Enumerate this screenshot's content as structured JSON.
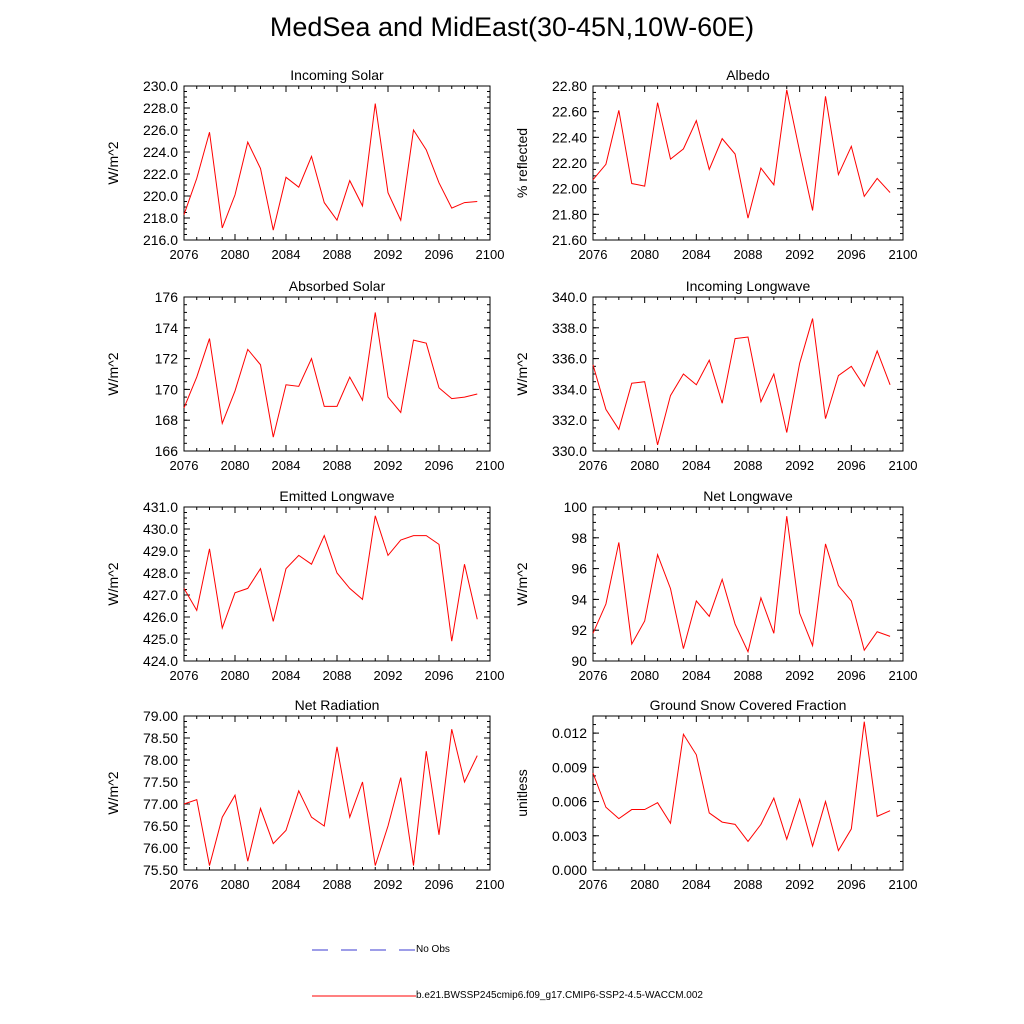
{
  "title": "MedSea and MidEast(30-45N,10W-60E)",
  "colors": {
    "series": "#ff0000",
    "obs": "#3b3bd0",
    "axis": "#000000"
  },
  "legend": {
    "obs_label": "No Obs",
    "model_label": "b.e21.BWSSP245cmip6.f09_g17.CMIP6-SSP2-4.5-WACCM.002"
  },
  "chart_data": [
    {
      "type": "line",
      "title": "Incoming Solar",
      "ylabel": "W/m^2",
      "xlim": [
        2076,
        2100
      ],
      "xticks": [
        "2076",
        "2080",
        "2084",
        "2088",
        "2092",
        "2096",
        "2100"
      ],
      "ylim": [
        216,
        230
      ],
      "yticks": [
        "216.0",
        "218.0",
        "220.0",
        "222.0",
        "224.0",
        "226.0",
        "228.0",
        "230.0"
      ],
      "x": [
        2076,
        2077,
        2078,
        2079,
        2080,
        2081,
        2082,
        2083,
        2084,
        2085,
        2086,
        2087,
        2088,
        2089,
        2090,
        2091,
        2092,
        2093,
        2094,
        2095,
        2096,
        2097,
        2098,
        2099
      ],
      "values": [
        218.3,
        221.6,
        225.8,
        217.1,
        220.1,
        224.9,
        222.5,
        216.9,
        221.7,
        220.8,
        223.6,
        219.4,
        217.8,
        221.4,
        219.1,
        228.4,
        220.3,
        217.8,
        226.0,
        224.2,
        221.2,
        218.9,
        219.4,
        219.5
      ]
    },
    {
      "type": "line",
      "title": "Albedo",
      "ylabel": "% reflected",
      "xlim": [
        2076,
        2100
      ],
      "xticks": [
        "2076",
        "2080",
        "2084",
        "2088",
        "2092",
        "2096",
        "2100"
      ],
      "ylim": [
        21.6,
        22.8
      ],
      "yticks": [
        "21.60",
        "21.80",
        "22.00",
        "22.20",
        "22.40",
        "22.60",
        "22.80"
      ],
      "x": [
        2076,
        2077,
        2078,
        2079,
        2080,
        2081,
        2082,
        2083,
        2084,
        2085,
        2086,
        2087,
        2088,
        2089,
        2090,
        2091,
        2092,
        2093,
        2094,
        2095,
        2096,
        2097,
        2098,
        2099
      ],
      "values": [
        22.07,
        22.19,
        22.61,
        22.04,
        22.02,
        22.67,
        22.23,
        22.31,
        22.53,
        22.15,
        22.39,
        22.27,
        21.77,
        22.16,
        22.03,
        22.77,
        22.29,
        21.83,
        22.72,
        22.11,
        22.33,
        21.94,
        22.08,
        21.97
      ]
    },
    {
      "type": "line",
      "title": "Absorbed Solar",
      "ylabel": "W/m^2",
      "xlim": [
        2076,
        2100
      ],
      "xticks": [
        "2076",
        "2080",
        "2084",
        "2088",
        "2092",
        "2096",
        "2100"
      ],
      "ylim": [
        166,
        176
      ],
      "yticks": [
        "166",
        "168",
        "170",
        "172",
        "174",
        "176"
      ],
      "x": [
        2076,
        2077,
        2078,
        2079,
        2080,
        2081,
        2082,
        2083,
        2084,
        2085,
        2086,
        2087,
        2088,
        2089,
        2090,
        2091,
        2092,
        2093,
        2094,
        2095,
        2096,
        2097,
        2098,
        2099
      ],
      "values": [
        168.8,
        170.8,
        173.3,
        167.8,
        169.9,
        172.6,
        171.6,
        166.9,
        170.3,
        170.2,
        172.0,
        168.9,
        168.9,
        170.8,
        169.3,
        175.0,
        169.5,
        168.5,
        173.2,
        173.0,
        170.1,
        169.4,
        169.5,
        169.7
      ]
    },
    {
      "type": "line",
      "title": "Incoming Longwave",
      "ylabel": "W/m^2",
      "xlim": [
        2076,
        2100
      ],
      "xticks": [
        "2076",
        "2080",
        "2084",
        "2088",
        "2092",
        "2096",
        "2100"
      ],
      "ylim": [
        330,
        340
      ],
      "yticks": [
        "330.0",
        "332.0",
        "334.0",
        "336.0",
        "338.0",
        "340.0"
      ],
      "x": [
        2076,
        2077,
        2078,
        2079,
        2080,
        2081,
        2082,
        2083,
        2084,
        2085,
        2086,
        2087,
        2088,
        2089,
        2090,
        2091,
        2092,
        2093,
        2094,
        2095,
        2096,
        2097,
        2098,
        2099
      ],
      "values": [
        335.6,
        332.7,
        331.4,
        334.4,
        334.5,
        330.4,
        333.6,
        335.0,
        334.3,
        335.9,
        333.1,
        337.3,
        337.4,
        333.2,
        335.0,
        331.2,
        335.7,
        338.6,
        332.1,
        334.9,
        335.5,
        334.2,
        336.5,
        334.3
      ]
    },
    {
      "type": "line",
      "title": "Emitted Longwave",
      "ylabel": "W/m^2",
      "xlim": [
        2076,
        2100
      ],
      "xticks": [
        "2076",
        "2080",
        "2084",
        "2088",
        "2092",
        "2096",
        "2100"
      ],
      "ylim": [
        424,
        431
      ],
      "yticks": [
        "424.0",
        "425.0",
        "426.0",
        "427.0",
        "428.0",
        "429.0",
        "430.0",
        "431.0"
      ],
      "x": [
        2076,
        2077,
        2078,
        2079,
        2080,
        2081,
        2082,
        2083,
        2084,
        2085,
        2086,
        2087,
        2088,
        2089,
        2090,
        2091,
        2092,
        2093,
        2094,
        2095,
        2096,
        2097,
        2098,
        2099
      ],
      "values": [
        427.3,
        426.3,
        429.1,
        425.5,
        427.1,
        427.3,
        428.2,
        425.8,
        428.2,
        428.8,
        428.4,
        429.7,
        428.0,
        427.3,
        426.8,
        430.6,
        428.8,
        429.5,
        429.7,
        429.7,
        429.3,
        424.9,
        428.4,
        425.9
      ]
    },
    {
      "type": "line",
      "title": "Net Longwave",
      "ylabel": "W/m^2",
      "xlim": [
        2076,
        2100
      ],
      "xticks": [
        "2076",
        "2080",
        "2084",
        "2088",
        "2092",
        "2096",
        "2100"
      ],
      "ylim": [
        90,
        100
      ],
      "yticks": [
        "90",
        "92",
        "94",
        "96",
        "98",
        "100"
      ],
      "x": [
        2076,
        2077,
        2078,
        2079,
        2080,
        2081,
        2082,
        2083,
        2084,
        2085,
        2086,
        2087,
        2088,
        2089,
        2090,
        2091,
        2092,
        2093,
        2094,
        2095,
        2096,
        2097,
        2098,
        2099
      ],
      "values": [
        91.8,
        93.7,
        97.7,
        91.1,
        92.6,
        96.9,
        94.7,
        90.8,
        93.9,
        92.9,
        95.3,
        92.4,
        90.6,
        94.1,
        91.8,
        99.4,
        93.1,
        91.0,
        97.6,
        94.9,
        93.9,
        90.7,
        91.9,
        91.6
      ]
    },
    {
      "type": "line",
      "title": "Net Radiation",
      "ylabel": "W/m^2",
      "xlim": [
        2076,
        2100
      ],
      "xticks": [
        "2076",
        "2080",
        "2084",
        "2088",
        "2092",
        "2096",
        "2100"
      ],
      "ylim": [
        75.5,
        79.0
      ],
      "yticks": [
        "75.50",
        "76.00",
        "76.50",
        "77.00",
        "77.50",
        "78.00",
        "78.50",
        "79.00"
      ],
      "x": [
        2076,
        2077,
        2078,
        2079,
        2080,
        2081,
        2082,
        2083,
        2084,
        2085,
        2086,
        2087,
        2088,
        2089,
        2090,
        2091,
        2092,
        2093,
        2094,
        2095,
        2096,
        2097,
        2098,
        2099
      ],
      "values": [
        77.0,
        77.1,
        75.6,
        76.7,
        77.2,
        75.7,
        76.9,
        76.1,
        76.4,
        77.3,
        76.7,
        76.5,
        78.3,
        76.7,
        77.5,
        75.6,
        76.5,
        77.6,
        75.6,
        78.2,
        76.3,
        78.7,
        77.5,
        78.1
      ]
    },
    {
      "type": "line",
      "title": "Ground Snow Covered Fraction",
      "ylabel": "unitless",
      "xlim": [
        2076,
        2100
      ],
      "xticks": [
        "2076",
        "2080",
        "2084",
        "2088",
        "2092",
        "2096",
        "2100"
      ],
      "ylim": [
        0.0,
        0.0135
      ],
      "yticks": [
        "0.000",
        "0.003",
        "0.006",
        "0.009",
        "0.012"
      ],
      "ytick_values": [
        0,
        0.003,
        0.006,
        0.009,
        0.012
      ],
      "x": [
        2076,
        2077,
        2078,
        2079,
        2080,
        2081,
        2082,
        2083,
        2084,
        2085,
        2086,
        2087,
        2088,
        2089,
        2090,
        2091,
        2092,
        2093,
        2094,
        2095,
        2096,
        2097,
        2098,
        2099
      ],
      "values": [
        0.0085,
        0.0055,
        0.0045,
        0.0053,
        0.0053,
        0.0059,
        0.0041,
        0.0119,
        0.0101,
        0.005,
        0.0042,
        0.004,
        0.0025,
        0.004,
        0.0063,
        0.0027,
        0.0062,
        0.0021,
        0.006,
        0.0017,
        0.0036,
        0.013,
        0.0047,
        0.0052
      ]
    }
  ]
}
